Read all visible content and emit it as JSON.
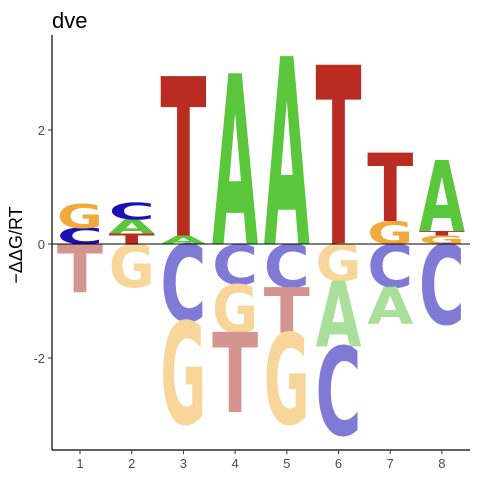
{
  "chart_data": {
    "type": "sequence-logo",
    "title": "dve",
    "ylabel": "−ΔΔG/RT",
    "xlabel": "",
    "ylim": [
      -3.6,
      3.6
    ],
    "x_ticks": [
      1,
      2,
      3,
      4,
      5,
      6,
      7,
      8
    ],
    "y_ticks": [
      -2,
      0,
      2
    ],
    "colors": {
      "A": "#5ac63b",
      "C": "#1a10b5",
      "G": "#f2a93b",
      "T": "#b82c21",
      "A_neg": "#a9df9a",
      "C_neg": "#7f7ad6",
      "G_neg": "#f8d69a",
      "T_neg": "#d4948f"
    },
    "positions": [
      {
        "pos": 1,
        "positive": [
          {
            "letter": "C",
            "value": 0.28
          },
          {
            "letter": "G",
            "value": 0.42
          }
        ],
        "negative": [
          {
            "letter": "T",
            "value": 0.85
          }
        ]
      },
      {
        "pos": 2,
        "positive": [
          {
            "letter": "T",
            "value": 0.18
          },
          {
            "letter": "A",
            "value": 0.25
          },
          {
            "letter": "C",
            "value": 0.3
          }
        ],
        "negative": [
          {
            "letter": "G",
            "value": 0.75
          }
        ]
      },
      {
        "pos": 3,
        "positive": [
          {
            "letter": "A",
            "value": 0.15
          },
          {
            "letter": "T",
            "value": 2.8
          }
        ],
        "negative": [
          {
            "letter": "C",
            "value": 1.35
          },
          {
            "letter": "G",
            "value": 1.8
          }
        ]
      },
      {
        "pos": 4,
        "positive": [
          {
            "letter": "A",
            "value": 3.0
          }
        ],
        "negative": [
          {
            "letter": "C",
            "value": 0.7
          },
          {
            "letter": "G",
            "value": 0.85
          },
          {
            "letter": "T",
            "value": 1.4
          }
        ]
      },
      {
        "pos": 5,
        "positive": [
          {
            "letter": "A",
            "value": 3.3
          }
        ],
        "negative": [
          {
            "letter": "C",
            "value": 0.75
          },
          {
            "letter": "T",
            "value": 0.8
          },
          {
            "letter": "G",
            "value": 1.6
          }
        ]
      },
      {
        "pos": 6,
        "positive": [
          {
            "letter": "T",
            "value": 3.15
          }
        ],
        "negative": [
          {
            "letter": "G",
            "value": 0.65
          },
          {
            "letter": "A",
            "value": 1.15
          },
          {
            "letter": "C",
            "value": 1.55
          }
        ]
      },
      {
        "pos": 7,
        "positive": [
          {
            "letter": "G",
            "value": 0.4
          },
          {
            "letter": "T",
            "value": 1.2
          }
        ],
        "negative": [
          {
            "letter": "C",
            "value": 0.75
          },
          {
            "letter": "A",
            "value": 0.65
          }
        ]
      },
      {
        "pos": 8,
        "positive": [
          {
            "letter": "G",
            "value": 0.15
          },
          {
            "letter": "T",
            "value": 0.08
          },
          {
            "letter": "A",
            "value": 1.25
          }
        ],
        "negative": [
          {
            "letter": "C",
            "value": 1.4
          }
        ]
      }
    ]
  }
}
